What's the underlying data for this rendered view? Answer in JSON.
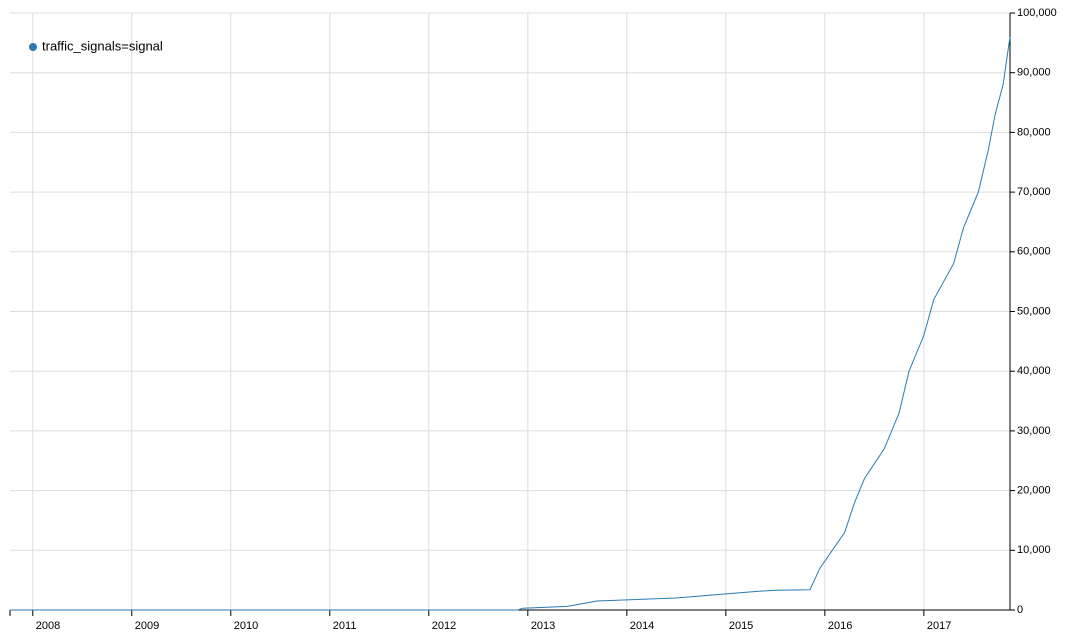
{
  "chart_data": {
    "type": "line",
    "x": [
      2007.77,
      2012.9,
      2012.95,
      2013.4,
      2013.7,
      2014.0,
      2014.5,
      2015.0,
      2015.3,
      2015.5,
      2015.85,
      2015.95,
      2016.2,
      2016.3,
      2016.4,
      2016.6,
      2016.75,
      2016.85,
      2017.0,
      2017.1,
      2017.3,
      2017.4,
      2017.55,
      2017.65,
      2017.72,
      2017.8,
      2017.87
    ],
    "series": [
      {
        "name": "traffic_signals=signal",
        "color": "#2a7ab0",
        "values": [
          0,
          0,
          300,
          600,
          1500,
          1700,
          2000,
          2700,
          3100,
          3300,
          3400,
          7000,
          13000,
          18000,
          22000,
          27000,
          33000,
          40000,
          46000,
          52000,
          58000,
          64000,
          70000,
          77000,
          83000,
          88000,
          96000
        ]
      }
    ],
    "xlim": [
      2007.77,
      2017.87
    ],
    "xticks": [
      2008,
      2009,
      2010,
      2011,
      2012,
      2013,
      2014,
      2015,
      2016,
      2017
    ],
    "ylim": [
      0,
      100000
    ],
    "yticks": [
      0,
      {
        "value": 10000,
        "label": "10,000"
      },
      {
        "value": 20000,
        "label": "20,000"
      },
      {
        "value": 30000,
        "label": "30,000"
      },
      {
        "value": 40000,
        "label": "40,000"
      },
      {
        "value": 50000,
        "label": "50,000"
      },
      {
        "value": 60000,
        "label": "60,000"
      },
      {
        "value": 70000,
        "label": "70,000"
      },
      {
        "value": 80000,
        "label": "80,000"
      },
      {
        "value": 90000,
        "label": "90,000"
      },
      {
        "value": 100000,
        "label": "100,000"
      }
    ],
    "grid": true,
    "legend": "top-left"
  }
}
